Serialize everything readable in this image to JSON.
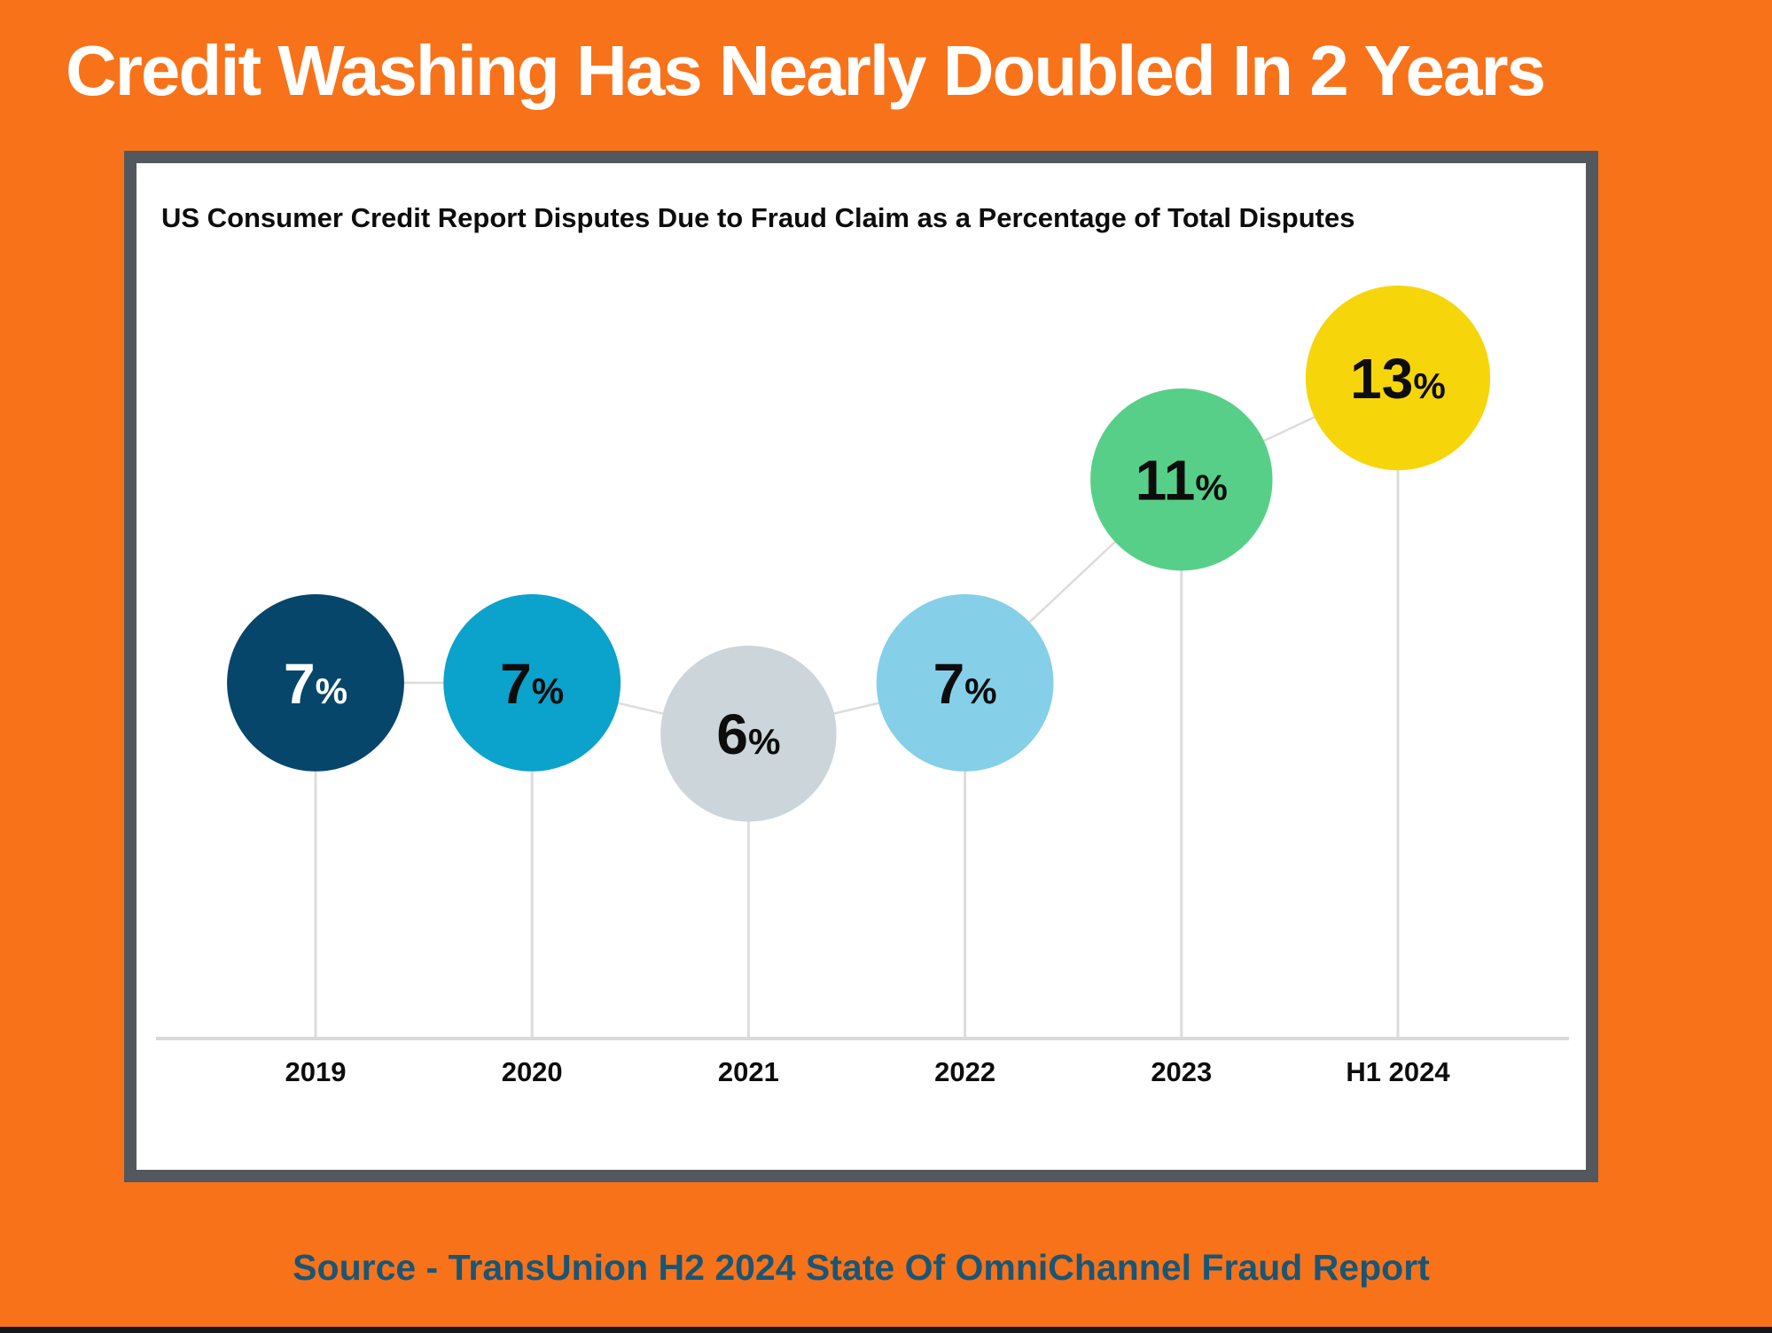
{
  "page": {
    "title": "Credit Washing Has Nearly Doubled In 2 Years",
    "source": "Source - TransUnion H2 2024 State Of OmniChannel Fraud Report",
    "background_color": "#F8721A",
    "title_color": "#FFFFFF",
    "source_color": "#1A5574",
    "footer_bar_color": "#12181C"
  },
  "card": {
    "subtitle": "US Consumer Credit Report Disputes Due to Fraud Claim as a Percentage of Total Disputes",
    "frame_color": "#53585E",
    "background_color": "#FFFFFF",
    "subtitle_color": "#0D0D0D"
  },
  "chart_data": {
    "type": "bubble-line",
    "title": "US Consumer Credit Report Disputes Due to Fraud Claim as a Percentage of Total Disputes",
    "categories": [
      "2019",
      "2020",
      "2021",
      "2022",
      "2023",
      "H1 2024"
    ],
    "values": [
      7,
      7,
      6,
      7,
      11,
      13
    ],
    "unit": "%",
    "points": [
      {
        "label": "2019",
        "value": 7,
        "bubble_color": "#07466B",
        "text_color": "#FFFFFF"
      },
      {
        "label": "2020",
        "value": 7,
        "bubble_color": "#0BA2CB",
        "text_color": "#0D0D0D"
      },
      {
        "label": "2021",
        "value": 6,
        "bubble_color": "#CBD5DA",
        "text_color": "#0D0D0D"
      },
      {
        "label": "2022",
        "value": 7,
        "bubble_color": "#85CFE9",
        "text_color": "#0D0D0D"
      },
      {
        "label": "2023",
        "value": 11,
        "bubble_color": "#57CF88",
        "text_color": "#0D0D0D"
      },
      {
        "label": "H1 2024",
        "value": 13,
        "bubble_color": "#F6D60B",
        "text_color": "#0D0D0D"
      }
    ],
    "connector_color": "#DCDCDC",
    "axis_color": "#D9D9D9",
    "tick_label_color": "#0D0D0D",
    "ylim": [
      0,
      17.5
    ],
    "grid": false,
    "legend": false,
    "xlabel": "",
    "ylabel": ""
  }
}
